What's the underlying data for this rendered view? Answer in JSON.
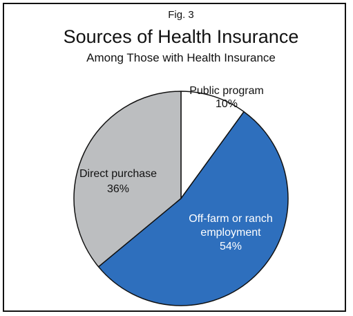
{
  "figure_label": "Fig. 3",
  "chart_data": {
    "type": "pie",
    "title": "Sources of Health Insurance",
    "subtitle": "Among Those with Health Insurance",
    "slices": [
      {
        "name": "Public program",
        "label_lines": [
          "Public program",
          "10%"
        ],
        "value": 10,
        "color": "#ffffff",
        "label_color": "#111111"
      },
      {
        "name": "Off-farm or ranch employment",
        "label_lines": [
          "Off-farm or ranch",
          "employment",
          "54%"
        ],
        "value": 54,
        "color": "#2e6fbd",
        "label_color": "#ffffff"
      },
      {
        "name": "Direct purchase",
        "label_lines": [
          "Direct purchase",
          "36%"
        ],
        "value": 36,
        "color": "#bcbec0",
        "label_color": "#111111"
      }
    ],
    "start_angle_deg": 0,
    "direction": "clockwise",
    "legend": "none"
  }
}
